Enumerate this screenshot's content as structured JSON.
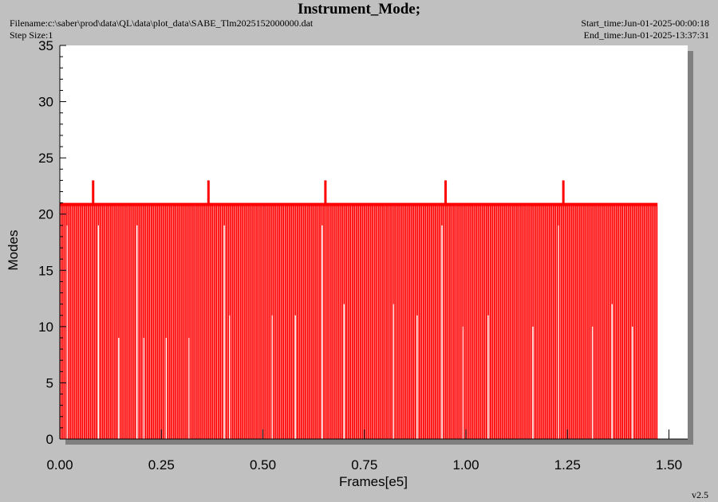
{
  "header": {
    "title": "Instrument_Mode;",
    "filename": "Filename:c:\\saber\\prod\\data\\QL\\data\\plot_data\\SABE_Tlm2025152000000.dat",
    "step_size": "Step Size:1",
    "start_time": "Start_time:Jun-01-2025-00:00:18",
    "end_time": "End_time:Jun-01-2025-13:37:31"
  },
  "footer": {
    "version": "v2.5"
  },
  "colors": {
    "series": "#ff0000",
    "background": "#c0c0c0",
    "plot_bg": "#ffffff",
    "shadow": "#808080"
  },
  "chart_data": {
    "type": "line",
    "title": "Instrument_Mode;",
    "xlabel": "Frames[e5]",
    "ylabel": "Modes",
    "xlim": [
      0.0,
      1.55
    ],
    "ylim": [
      0,
      35
    ],
    "x_ticks": [
      "0.00",
      "0.25",
      "0.50",
      "0.75",
      "1.00",
      "1.25",
      "1.50"
    ],
    "y_ticks": [
      "0",
      "5",
      "10",
      "15",
      "20",
      "25",
      "30",
      "35"
    ],
    "grid": false,
    "series": [
      {
        "baseline_value": 21,
        "x_range": [
          0.0,
          1.472
        ],
        "drop_value": 0,
        "drop_spacing": 0.005,
        "spikes": [
          {
            "x": 0.082,
            "y": 23
          },
          {
            "x": 0.366,
            "y": 23
          },
          {
            "x": 0.654,
            "y": 23
          },
          {
            "x": 0.95,
            "y": 23
          },
          {
            "x": 1.24,
            "y": 23
          }
        ],
        "partial_drops": [
          {
            "x": 0.018,
            "y": 19
          },
          {
            "x": 0.095,
            "y": 19
          },
          {
            "x": 0.145,
            "y": 9
          },
          {
            "x": 0.19,
            "y": 19
          },
          {
            "x": 0.207,
            "y": 9
          },
          {
            "x": 0.262,
            "y": 9
          },
          {
            "x": 0.318,
            "y": 9
          },
          {
            "x": 0.405,
            "y": 19
          },
          {
            "x": 0.418,
            "y": 11
          },
          {
            "x": 0.523,
            "y": 11
          },
          {
            "x": 0.58,
            "y": 11
          },
          {
            "x": 0.646,
            "y": 19
          },
          {
            "x": 0.7,
            "y": 12
          },
          {
            "x": 0.822,
            "y": 12
          },
          {
            "x": 0.88,
            "y": 11
          },
          {
            "x": 0.941,
            "y": 19
          },
          {
            "x": 0.993,
            "y": 10
          },
          {
            "x": 1.055,
            "y": 11
          },
          {
            "x": 1.165,
            "y": 10
          },
          {
            "x": 1.228,
            "y": 19
          },
          {
            "x": 1.312,
            "y": 10
          },
          {
            "x": 1.36,
            "y": 12
          },
          {
            "x": 1.41,
            "y": 10
          }
        ]
      }
    ]
  }
}
